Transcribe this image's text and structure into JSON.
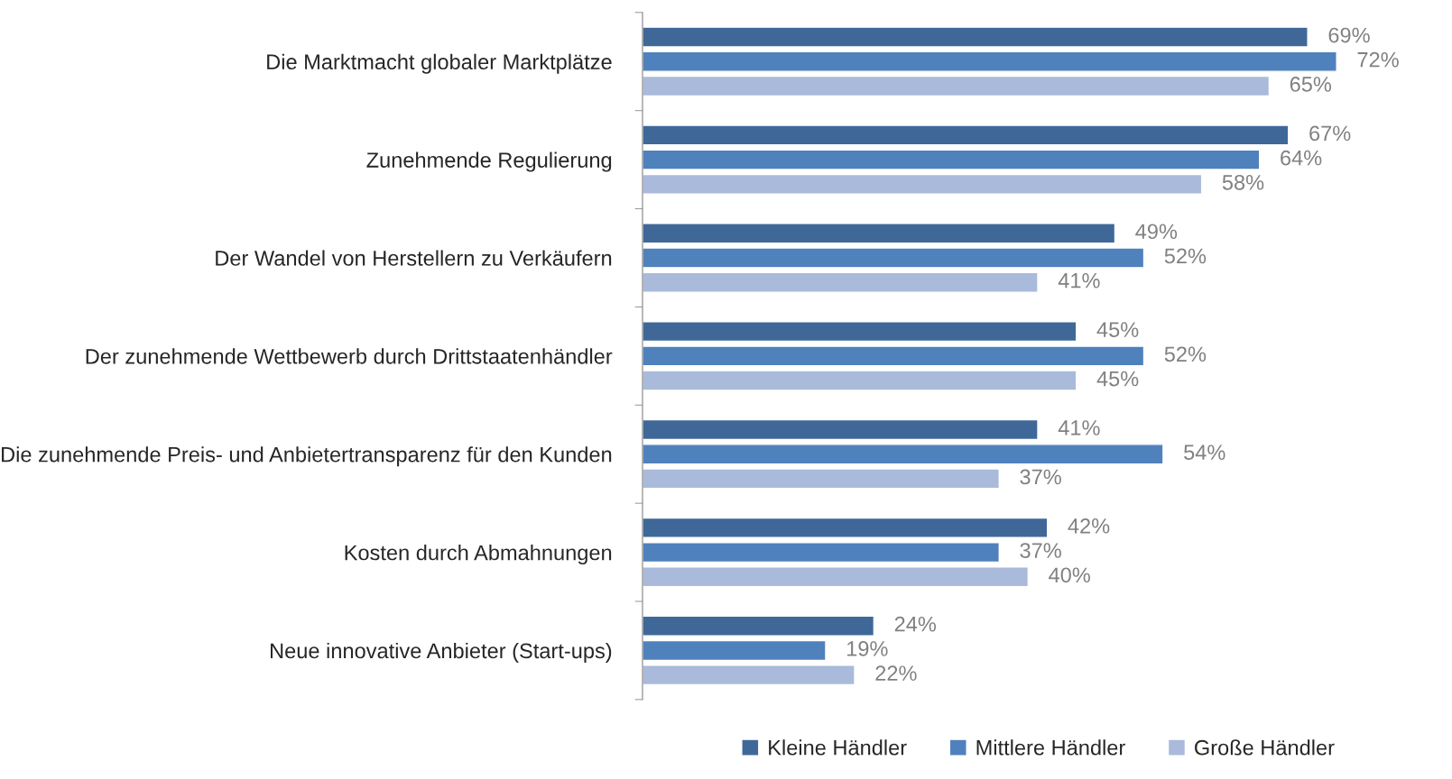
{
  "chart_data": {
    "type": "bar",
    "orientation": "horizontal",
    "categories": [
      "Die Marktmacht globaler Marktplätze",
      "Zunehmende Regulierung",
      "Der Wandel von Herstellern zu Verkäufern",
      "Der zunehmende Wettbewerb durch Drittstaatenhändler",
      "Die zunehmende Preis- und Anbietertransparenz für den Kunden",
      "Kosten durch Abmahnungen",
      "Neue innovative Anbieter (Start-ups)"
    ],
    "series": [
      {
        "name": "Kleine Händler",
        "color": "#3f6899",
        "values": [
          69,
          67,
          49,
          45,
          41,
          42,
          24
        ],
        "value_labels": [
          "69%",
          "67%",
          "49%",
          "45%",
          "41%",
          "42%",
          "24%"
        ]
      },
      {
        "name": "Mittlere Händler",
        "color": "#4f81bd",
        "values": [
          72,
          64,
          52,
          52,
          54,
          37,
          19
        ],
        "value_labels": [
          "72%",
          "64%",
          "52%",
          "52%",
          "54%",
          "37%",
          "19%"
        ]
      },
      {
        "name": "Große Händler",
        "color": "#a9badb",
        "values": [
          65,
          58,
          41,
          45,
          37,
          40,
          22
        ],
        "value_labels": [
          "65%",
          "58%",
          "41%",
          "45%",
          "37%",
          "40%",
          "22%"
        ]
      }
    ],
    "legend": "bottom",
    "grid": false
  }
}
